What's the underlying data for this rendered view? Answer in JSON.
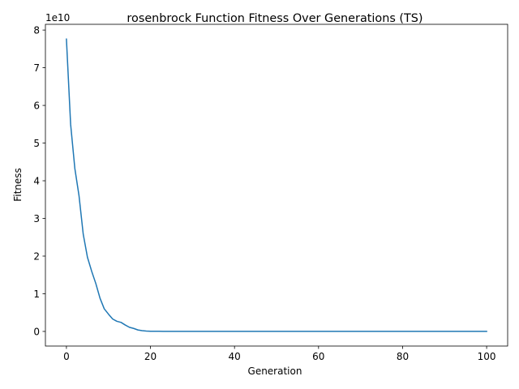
{
  "chart_data": {
    "type": "line",
    "title": "rosenbrock Function Fitness Over Generations (TS)",
    "xlabel": "Generation",
    "ylabel": "Fitness",
    "y_offset_label": "1e10",
    "y_scale_factor": 10000000000,
    "xlim": [
      -5,
      105
    ],
    "ylim": [
      -0.388,
      8.153
    ],
    "x_ticks": [
      0,
      20,
      40,
      60,
      80,
      100
    ],
    "x_tick_labels": [
      "0",
      "20",
      "40",
      "60",
      "80",
      "100"
    ],
    "y_ticks": [
      0,
      1,
      2,
      3,
      4,
      5,
      6,
      7,
      8
    ],
    "y_tick_labels": [
      "0",
      "1",
      "2",
      "3",
      "4",
      "5",
      "6",
      "7",
      "8"
    ],
    "grid": false,
    "legend": false,
    "colors": {
      "line": "#1f77b4",
      "axes": "#000000",
      "background": "#ffffff"
    },
    "series": [
      {
        "x": [
          0,
          1,
          2,
          3,
          4,
          5,
          6,
          7,
          8,
          9,
          10,
          11,
          12,
          13,
          14,
          15,
          16,
          17,
          18,
          19,
          20,
          21,
          22,
          23,
          24,
          25,
          30,
          40,
          50,
          60,
          70,
          80,
          90,
          100
        ],
        "y": [
          7.76,
          5.5,
          4.33,
          3.6,
          2.58,
          1.97,
          1.6,
          1.27,
          0.88,
          0.6,
          0.46,
          0.33,
          0.27,
          0.24,
          0.17,
          0.11,
          0.08,
          0.04,
          0.02,
          0.01,
          0.005,
          0.004,
          0.004,
          0.003,
          0.003,
          0.002,
          0.002,
          0.001,
          0.001,
          0.001,
          0.001,
          0.001,
          0.001,
          0.001
        ]
      }
    ]
  }
}
